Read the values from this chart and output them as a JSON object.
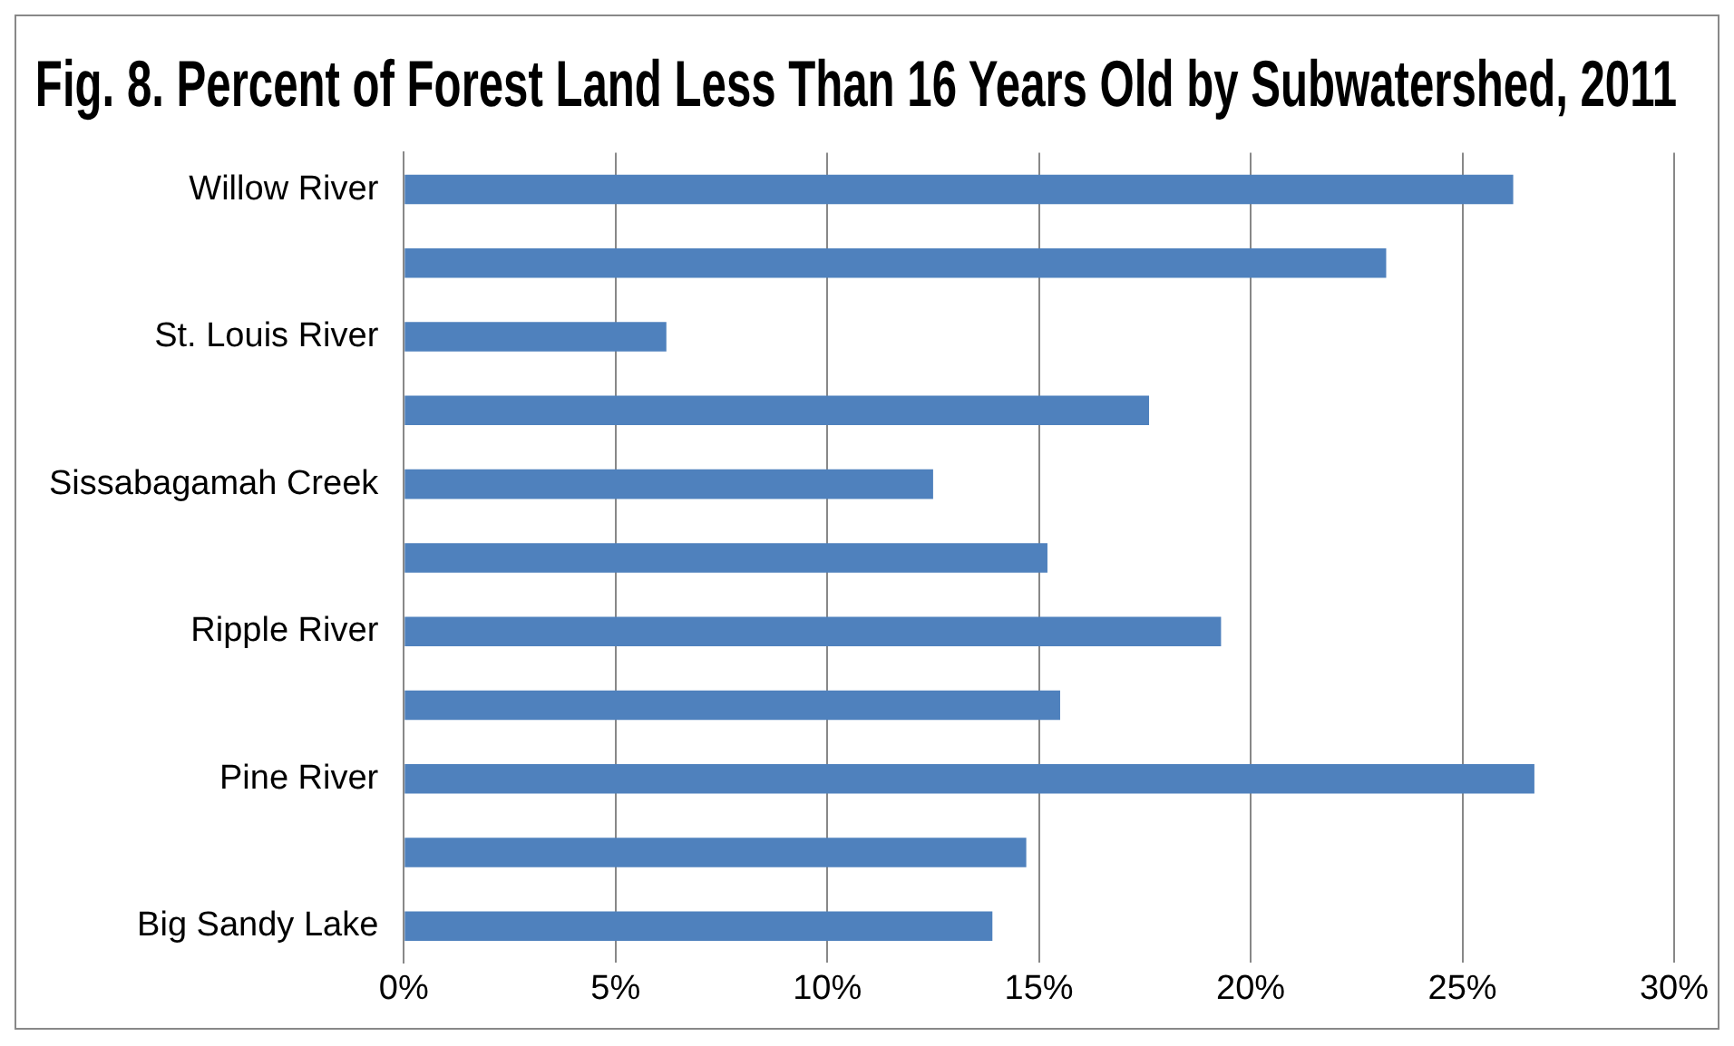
{
  "chart_data": {
    "type": "bar",
    "orientation": "horizontal",
    "title": "Fig. 8. Percent of Forest Land Less Than 16 Years Old by Subwatershed, 2011",
    "categories": [
      "Willow River",
      null,
      "St. Louis River",
      null,
      "Sissabagamah Creek",
      null,
      "Ripple River",
      null,
      "Pine River",
      null,
      "Big Sandy Lake"
    ],
    "values": [
      26.2,
      23.2,
      6.2,
      17.6,
      12.5,
      15.2,
      19.3,
      15.5,
      26.7,
      14.7,
      13.9
    ],
    "color": "#4f81bd",
    "xlim": [
      0,
      30
    ],
    "xticks": [
      {
        "value": 0,
        "label": "0%"
      },
      {
        "value": 5,
        "label": "5%"
      },
      {
        "value": 10,
        "label": "10%"
      },
      {
        "value": 15,
        "label": "15%"
      },
      {
        "value": 20,
        "label": "20%"
      },
      {
        "value": 25,
        "label": "25%"
      },
      {
        "value": 30,
        "label": "30%"
      }
    ],
    "grid": "x",
    "legend": false
  }
}
